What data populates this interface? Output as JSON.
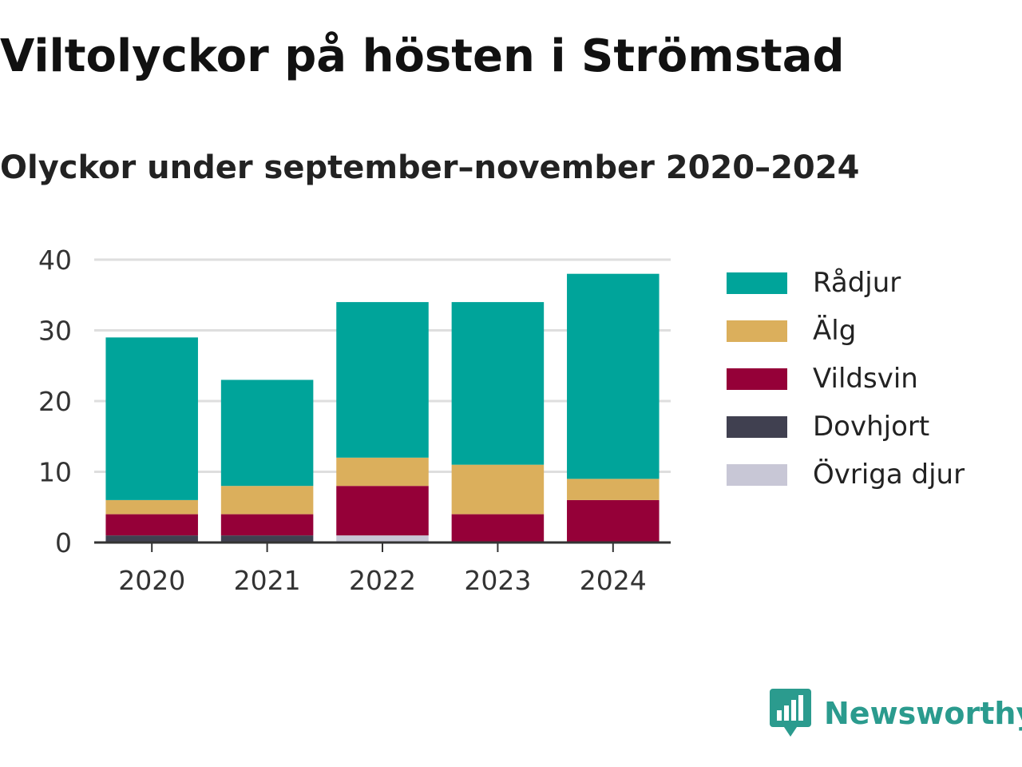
{
  "title": "Viltolyckor på hösten i Strömstad",
  "subtitle": "Olyckor under september–november 2020–2024",
  "brand": {
    "name": "Newsworthy",
    "logo_icon": "newsworthy-logo-icon",
    "color": "#2b9b8e"
  },
  "chart_data": {
    "type": "bar",
    "stacked": true,
    "title": "Viltolyckor på hösten i Strömstad",
    "subtitle": "Olyckor under september–november 2020–2024",
    "categories": [
      "2020",
      "2021",
      "2022",
      "2023",
      "2024"
    ],
    "series": [
      {
        "name": "Övriga djur",
        "color": "#c8c7d6",
        "values": [
          0,
          0,
          1,
          0,
          0
        ]
      },
      {
        "name": "Dovhjort",
        "color": "#404050",
        "values": [
          1,
          1,
          0,
          0,
          0
        ]
      },
      {
        "name": "Vildsvin",
        "color": "#950038",
        "values": [
          3,
          3,
          7,
          4,
          6
        ]
      },
      {
        "name": "Älg",
        "color": "#dbaf5c",
        "values": [
          2,
          4,
          4,
          7,
          3
        ]
      },
      {
        "name": "Rådjur",
        "color": "#00a49a",
        "values": [
          23,
          15,
          22,
          23,
          29
        ]
      }
    ],
    "yticks": [
      0,
      10,
      20,
      30,
      40
    ],
    "ylim": [
      0,
      40
    ],
    "grid": true,
    "legend": {
      "placement": "right",
      "order": [
        "Rådjur",
        "Älg",
        "Vildsvin",
        "Dovhjort",
        "Övriga djur"
      ]
    }
  }
}
